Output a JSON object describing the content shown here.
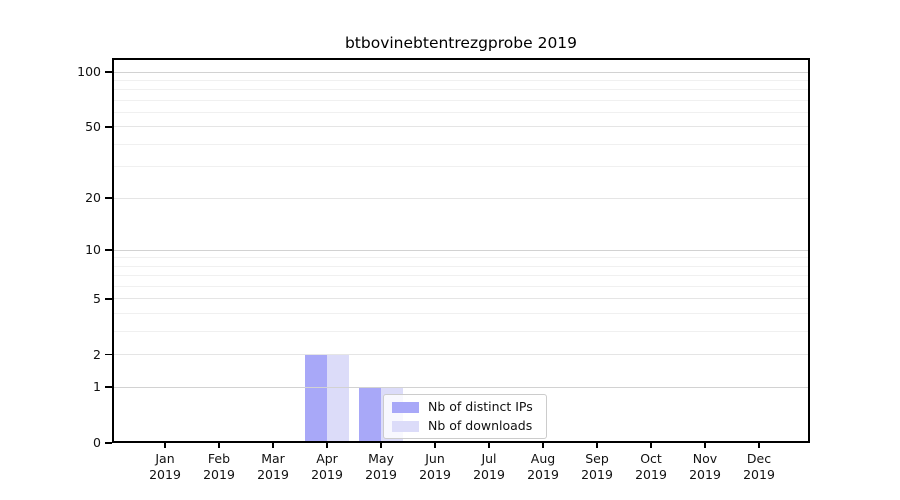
{
  "chart_data": {
    "type": "bar",
    "title": "btbovinebtentrezgprobe 2019",
    "categories": [
      "Jan",
      "Feb",
      "Mar",
      "Apr",
      "May",
      "Jun",
      "Jul",
      "Aug",
      "Sep",
      "Oct",
      "Nov",
      "Dec"
    ],
    "x_year_label": "2019",
    "series": [
      {
        "name": "Nb of distinct IPs",
        "color": "#a8a8f8",
        "values": [
          0,
          0,
          0,
          2,
          1,
          0,
          0,
          0,
          0,
          0,
          0,
          0
        ]
      },
      {
        "name": "Nb of downloads",
        "color": "#dcdcf9",
        "values": [
          0,
          0,
          0,
          2,
          1,
          0,
          0,
          0,
          0,
          0,
          0,
          0
        ]
      }
    ],
    "yscale": "log1p",
    "ylim": [
      0,
      119
    ],
    "y_tick_values": [
      0,
      1,
      2,
      5,
      10,
      20,
      50,
      100
    ],
    "y_major_grid_values": [
      1,
      10,
      100
    ],
    "y_mid_grid_values": [
      2,
      5,
      20,
      50
    ],
    "y_minor_grid_values": [
      3,
      4,
      6,
      7,
      8,
      9,
      30,
      40,
      60,
      70,
      80,
      90
    ],
    "grid": "horizontal",
    "legend": {
      "entries": [
        "Nb of distinct IPs",
        "Nb of downloads"
      ],
      "position": "lower-center"
    },
    "colors": {
      "bar_distinct_ips": "#a8a8f8",
      "bar_downloads": "#dcdcf9",
      "grid_major": "#d2d2d2",
      "grid_mid": "#e5e5e5",
      "grid_minor": "#f0f0f0",
      "spine": "#000000",
      "legend_border": "#cccccc",
      "background": "#ffffff",
      "text": "#111111"
    }
  }
}
